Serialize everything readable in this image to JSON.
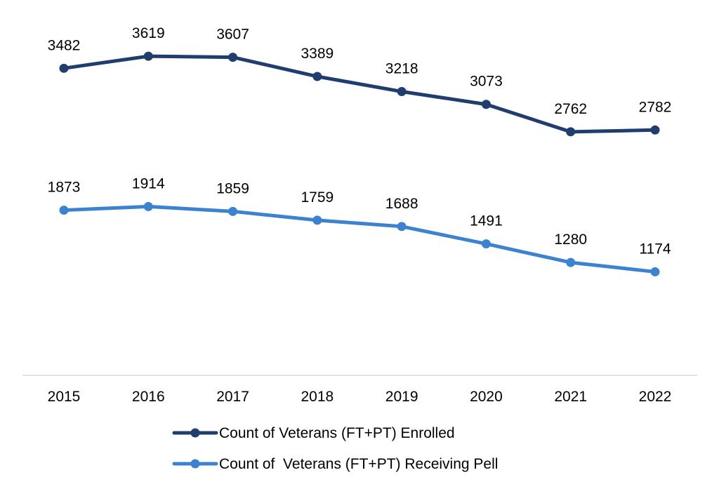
{
  "chart_data": {
    "type": "line",
    "categories": [
      "2015",
      "2016",
      "2017",
      "2018",
      "2019",
      "2020",
      "2021",
      "2022"
    ],
    "series": [
      {
        "name": "Count of Veterans (FT+PT) Enrolled",
        "color": "#1f3d6e",
        "values": [
          3482,
          3619,
          3607,
          3389,
          3218,
          3073,
          2762,
          2782
        ]
      },
      {
        "name": "Count of  Veterans (FT+PT) Receiving Pell",
        "color": "#3b82cf",
        "values": [
          1873,
          1914,
          1859,
          1759,
          1688,
          1491,
          1280,
          1174
        ]
      }
    ],
    "ylim": [
      0,
      4000
    ],
    "grid": false,
    "y_axis_visible": false,
    "data_labels": true,
    "legend_position": "bottom"
  }
}
